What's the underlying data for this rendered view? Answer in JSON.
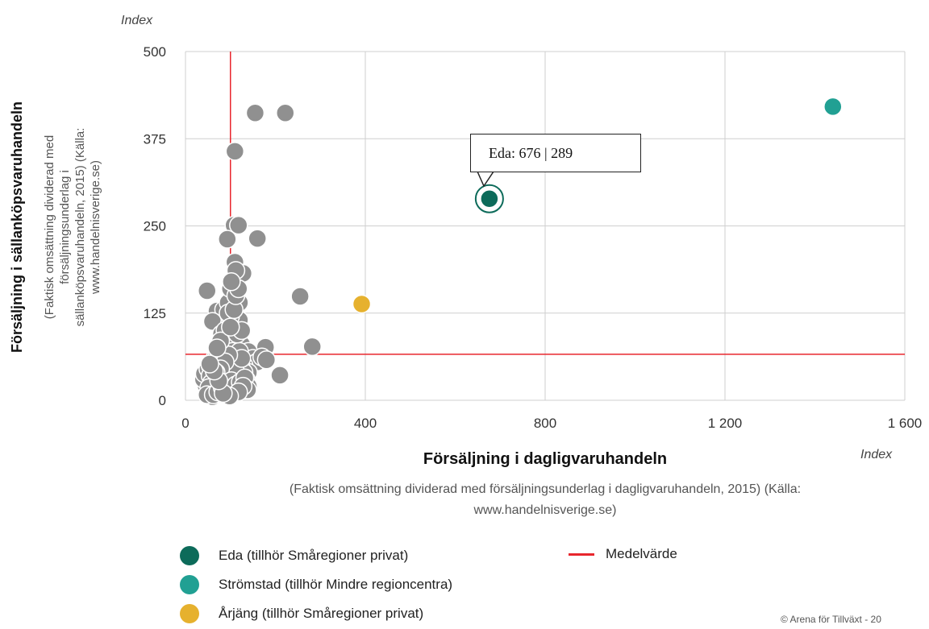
{
  "chart_data": {
    "type": "scatter",
    "title": "",
    "xlabel": "Försäljning i dagligvaruhandeln",
    "xlabel_sub": "(Faktisk omsättning dividerad med försäljningsunderlag i dagligvaruhandeln, 2015) (Källa: www.handelnisverige.se)",
    "xunit": "Index",
    "ylabel": "Försäljning i sällanköpsvaruhandeln",
    "ylabel_sub_lines": [
      "(Faktisk omsättning dividerad med",
      "försäljningsunderlag i",
      "sällanköpsvaruhandeln, 2015) (Källa:",
      "www.handelnisverige.se)"
    ],
    "yunit": "Index",
    "xlim": [
      0,
      1600
    ],
    "ylim": [
      0,
      500
    ],
    "xticks": [
      0,
      400,
      800,
      1200,
      1600
    ],
    "xtick_labels": [
      "0",
      "400",
      "800",
      "1 200",
      "1 600"
    ],
    "yticks": [
      0,
      125,
      250,
      375,
      500
    ],
    "grid": true,
    "mean_lines": {
      "x": 100,
      "y": 66,
      "color": "#e8262d",
      "name": "Medelvärde"
    },
    "series": [
      {
        "name": "Eda (tillhör Småregioner privat)",
        "color": "#0d6b5a",
        "points": [
          [
            676,
            289
          ]
        ],
        "highlight": true
      },
      {
        "name": "Strömstad (tillhör Mindre regioncentra)",
        "color": "#21a093",
        "points": [
          [
            1440,
            421
          ]
        ]
      },
      {
        "name": "Årjäng (tillhör Småregioner privat)",
        "color": "#e6b12e",
        "points": [
          [
            392,
            138
          ]
        ]
      },
      {
        "name": "",
        "color": "#909090",
        "points": [
          [
            155,
            412
          ],
          [
            222,
            412
          ],
          [
            110,
            357
          ],
          [
            108,
            251
          ],
          [
            118,
            251
          ],
          [
            93,
            231
          ],
          [
            160,
            232
          ],
          [
            48,
            157
          ],
          [
            255,
            149
          ],
          [
            282,
            77
          ],
          [
            178,
            76
          ],
          [
            210,
            36
          ],
          [
            110,
            198
          ],
          [
            128,
            182
          ],
          [
            112,
            186
          ],
          [
            70,
            128
          ],
          [
            85,
            130
          ],
          [
            95,
            140
          ],
          [
            100,
            160
          ],
          [
            120,
            140
          ],
          [
            60,
            113
          ],
          [
            98,
            110
          ],
          [
            120,
            115
          ],
          [
            105,
            100
          ],
          [
            80,
            95
          ],
          [
            90,
            88
          ],
          [
            110,
            85
          ],
          [
            125,
            80
          ],
          [
            140,
            70
          ],
          [
            150,
            60
          ],
          [
            160,
            55
          ],
          [
            170,
            62
          ],
          [
            180,
            58
          ],
          [
            130,
            50
          ],
          [
            140,
            40
          ],
          [
            120,
            35
          ],
          [
            110,
            30
          ],
          [
            100,
            20
          ],
          [
            90,
            15
          ],
          [
            80,
            10
          ],
          [
            70,
            8
          ],
          [
            60,
            5
          ],
          [
            50,
            12
          ],
          [
            45,
            22
          ],
          [
            40,
            30
          ],
          [
            42,
            38
          ],
          [
            50,
            45
          ],
          [
            55,
            50
          ],
          [
            60,
            55
          ],
          [
            65,
            60
          ],
          [
            70,
            62
          ],
          [
            75,
            65
          ],
          [
            80,
            70
          ],
          [
            85,
            72
          ],
          [
            90,
            75
          ],
          [
            95,
            78
          ],
          [
            100,
            80
          ],
          [
            105,
            70
          ],
          [
            110,
            60
          ],
          [
            115,
            55
          ],
          [
            120,
            50
          ],
          [
            125,
            45
          ],
          [
            130,
            40
          ],
          [
            135,
            30
          ],
          [
            140,
            20
          ],
          [
            100,
            45
          ],
          [
            95,
            50
          ],
          [
            90,
            40
          ],
          [
            85,
            35
          ],
          [
            80,
            30
          ],
          [
            75,
            25
          ],
          [
            70,
            20
          ],
          [
            65,
            15
          ],
          [
            60,
            30
          ],
          [
            55,
            35
          ],
          [
            105,
            40
          ],
          [
            110,
            45
          ],
          [
            115,
            65
          ],
          [
            120,
            70
          ],
          [
            125,
            60
          ],
          [
            100,
            120
          ],
          [
            95,
            125
          ],
          [
            108,
            130
          ],
          [
            112,
            150
          ],
          [
            118,
            160
          ],
          [
            102,
            170
          ],
          [
            96,
            65
          ],
          [
            88,
            55
          ],
          [
            78,
            45
          ],
          [
            68,
            40
          ],
          [
            58,
            25
          ],
          [
            52,
            18
          ],
          [
            48,
            8
          ],
          [
            62,
            8
          ],
          [
            72,
            12
          ],
          [
            82,
            18
          ],
          [
            92,
            25
          ],
          [
            102,
            28
          ],
          [
            112,
            22
          ],
          [
            122,
            26
          ],
          [
            132,
            32
          ],
          [
            138,
            15
          ],
          [
            128,
            20
          ],
          [
            118,
            12
          ],
          [
            98,
            6
          ],
          [
            84,
            10
          ],
          [
            74,
            28
          ],
          [
            64,
            42
          ],
          [
            54,
            52
          ],
          [
            88,
            100
          ],
          [
            78,
            85
          ],
          [
            70,
            75
          ],
          [
            115,
            95
          ],
          [
            125,
            100
          ],
          [
            100,
            105
          ]
        ]
      }
    ],
    "tooltip": "Eda: 676 | 289"
  },
  "legend": {
    "items": [
      {
        "label": "Eda (tillhör Småregioner privat)",
        "color": "#0d6b5a"
      },
      {
        "label": "Strömstad (tillhör Mindre regioncentra)",
        "color": "#21a093"
      },
      {
        "label": "Årjäng (tillhör Småregioner privat)",
        "color": "#e6b12e"
      }
    ],
    "mean_label": "Medelvärde",
    "mean_color": "#e8262d"
  },
  "credit": "© Arena för Tillväxt - 20"
}
